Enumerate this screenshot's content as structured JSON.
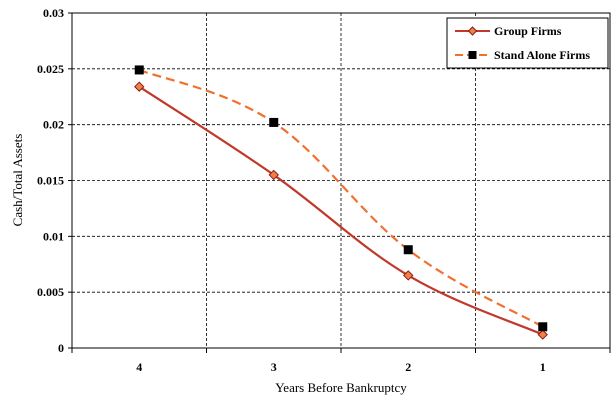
{
  "chart_data": {
    "type": "line",
    "title": "",
    "xlabel": "Years Before Bankruptcy",
    "ylabel": "Cash/Total Assets",
    "categories": [
      "4",
      "3",
      "2",
      "1"
    ],
    "ylim": [
      0,
      0.03
    ],
    "yticks": [
      "0",
      "0.005",
      "0.01",
      "0.015",
      "0.02",
      "0.025",
      "0.03"
    ],
    "grid": true,
    "legend_position": "top-right",
    "series": [
      {
        "name": "Group Firms",
        "values": [
          0.0234,
          0.0155,
          0.0065,
          0.0012
        ],
        "color": "#c0392b",
        "line_style": "solid",
        "marker": "diamond",
        "marker_fill": "#f0804a"
      },
      {
        "name": "Stand Alone Firms",
        "values": [
          0.0249,
          0.0202,
          0.0088,
          0.0019
        ],
        "color": "#f07030",
        "line_style": "dashed",
        "marker": "square",
        "marker_fill": "#000000"
      }
    ]
  }
}
